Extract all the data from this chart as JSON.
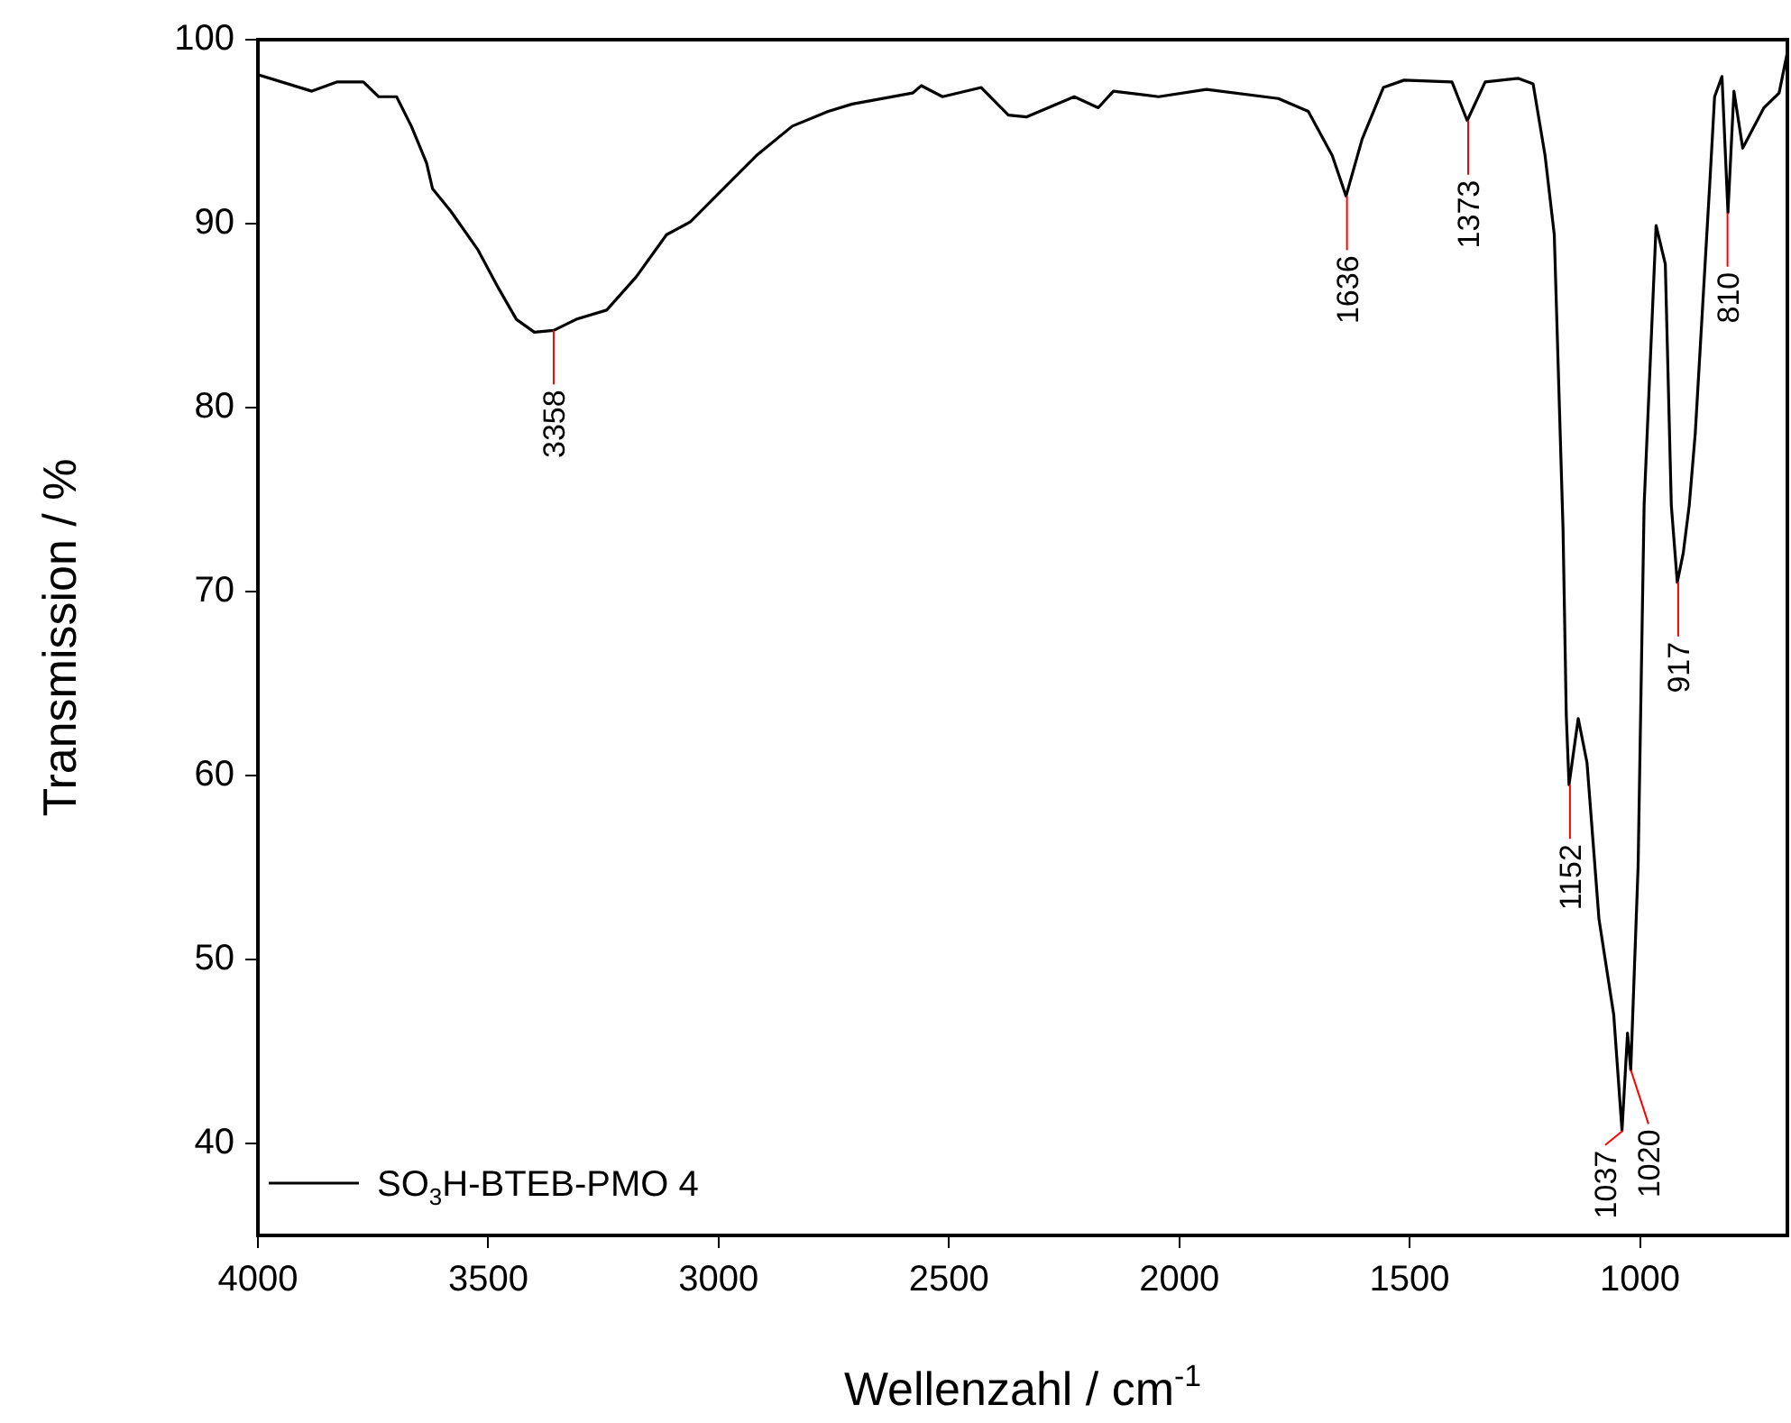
{
  "chart_data": {
    "type": "line",
    "xlabel": "Wellenzahl / cm$^{-1}$",
    "ylabel": "Transmission / %",
    "xlim": [
      4000,
      680
    ],
    "ylim": [
      35,
      100
    ],
    "xticks": [
      4000,
      3500,
      3000,
      2500,
      2000,
      1500,
      1000
    ],
    "yticks": [
      40,
      50,
      60,
      70,
      80,
      90,
      100
    ],
    "grid": false,
    "legend": "bottom left",
    "marker": "none",
    "line_style": "solid",
    "series": [
      {
        "name": "SO$_{3}$H-BTEB-PMO 4",
        "color": "#000000",
        "x": [
          4000,
          3883,
          3829,
          3771,
          3738,
          3699,
          3667,
          3634,
          3621,
          3582,
          3523,
          3478,
          3439,
          3400,
          3358,
          3309,
          3243,
          3179,
          3113,
          3061,
          2970,
          2918,
          2840,
          2762,
          2710,
          2579,
          2560,
          2514,
          2430,
          2371,
          2332,
          2228,
          2176,
          2143,
          2045,
          1941,
          1785,
          1720,
          1668,
          1638,
          1603,
          1557,
          1512,
          1408,
          1375,
          1336,
          1265,
          1232,
          1206,
          1186,
          1167,
          1160,
          1154,
          1134,
          1115,
          1089,
          1057,
          1039,
          1027,
          1020,
          1004,
          991,
          965,
          945,
          932,
          919,
          906,
          893,
          880,
          848,
          838,
          822,
          809,
          796,
          777,
          731,
          698,
          681
        ],
        "values": [
          98.1,
          97.2,
          97.7,
          97.7,
          96.9,
          96.9,
          95.3,
          93.3,
          91.9,
          90.7,
          88.6,
          86.5,
          84.8,
          84.1,
          84.2,
          84.8,
          85.3,
          87.1,
          89.4,
          90.1,
          92.4,
          93.7,
          95.3,
          96.1,
          96.5,
          97.1,
          97.5,
          96.9,
          97.4,
          95.9,
          95.8,
          96.9,
          96.3,
          97.2,
          96.9,
          97.3,
          96.8,
          96.1,
          93.7,
          91.5,
          94.6,
          97.4,
          97.8,
          97.7,
          95.6,
          97.7,
          97.9,
          97.6,
          93.7,
          89.4,
          73.4,
          63.3,
          59.5,
          63.1,
          60.7,
          52.2,
          47.0,
          40.7,
          46.0,
          44.0,
          55.1,
          74.7,
          89.9,
          87.8,
          74.7,
          70.5,
          72.1,
          74.7,
          78.6,
          92.4,
          96.9,
          98.0,
          90.6,
          97.2,
          94.1,
          96.3,
          97.1,
          99.2
        ]
      }
    ],
    "annotations": [
      {
        "text": "3358",
        "x": 3358,
        "y": 84.2
      },
      {
        "text": "1636",
        "x": 1636,
        "y": 91.5
      },
      {
        "text": "1373",
        "x": 1373,
        "y": 95.6
      },
      {
        "text": "1152",
        "x": 1152,
        "y": 59.5
      },
      {
        "text": "1037",
        "x": 1037,
        "y": 40.7
      },
      {
        "text": "1020",
        "x": 1020,
        "y": 44.0
      },
      {
        "text": "917",
        "x": 917,
        "y": 70.5
      },
      {
        "text": "810",
        "x": 810,
        "y": 90.6
      }
    ]
  }
}
